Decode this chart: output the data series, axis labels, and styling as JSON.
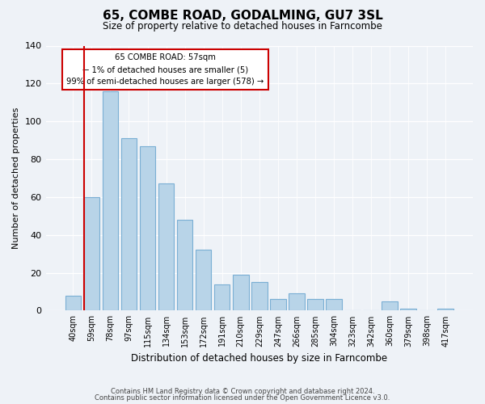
{
  "title": "65, COMBE ROAD, GODALMING, GU7 3SL",
  "subtitle": "Size of property relative to detached houses in Farncombe",
  "xlabel": "Distribution of detached houses by size in Farncombe",
  "ylabel": "Number of detached properties",
  "bar_labels": [
    "40sqm",
    "59sqm",
    "78sqm",
    "97sqm",
    "115sqm",
    "134sqm",
    "153sqm",
    "172sqm",
    "191sqm",
    "210sqm",
    "229sqm",
    "247sqm",
    "266sqm",
    "285sqm",
    "304sqm",
    "323sqm",
    "342sqm",
    "360sqm",
    "379sqm",
    "398sqm",
    "417sqm"
  ],
  "bar_heights": [
    8,
    60,
    116,
    91,
    87,
    67,
    48,
    32,
    14,
    19,
    15,
    6,
    9,
    6,
    6,
    0,
    0,
    5,
    1,
    0,
    1
  ],
  "bar_color": "#b8d4e8",
  "bar_edge_color": "#7aafd4",
  "highlight_color": "#cc0000",
  "annotation_line1": "65 COMBE ROAD: 57sqm",
  "annotation_line2": "← 1% of detached houses are smaller (5)",
  "annotation_line3": "99% of semi-detached houses are larger (578) →",
  "ylim": [
    0,
    140
  ],
  "yticks": [
    0,
    20,
    40,
    60,
    80,
    100,
    120,
    140
  ],
  "background_color": "#eef2f7",
  "grid_color": "#ffffff",
  "footer_line1": "Contains HM Land Registry data © Crown copyright and database right 2024.",
  "footer_line2": "Contains public sector information licensed under the Open Government Licence v3.0."
}
